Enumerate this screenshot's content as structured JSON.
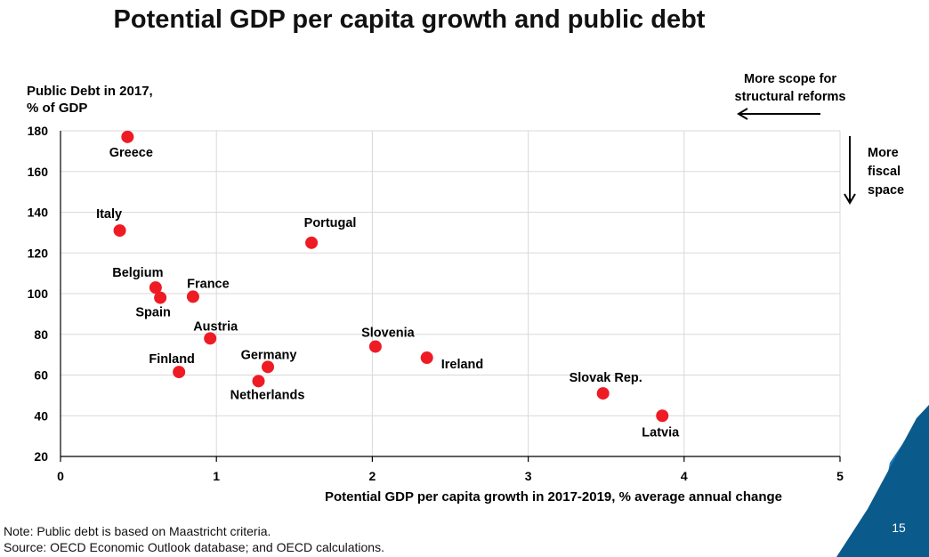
{
  "title": "Potential GDP per capita growth and public debt",
  "chart_data": {
    "type": "scatter",
    "title": "Potential GDP per capita growth and public debt",
    "xlabel": "Potential GDP per capita growth in 2017-2019, % average annual change",
    "ylabel_lines": [
      "Public Debt in 2017,",
      "% of GDP"
    ],
    "xlim": [
      0,
      5
    ],
    "ylim": [
      20,
      180
    ],
    "xticks": [
      0,
      1,
      2,
      3,
      4,
      5
    ],
    "yticks": [
      20,
      40,
      60,
      80,
      100,
      120,
      140,
      160,
      180
    ],
    "grid": true,
    "point_color": "#ee1b24",
    "points": [
      {
        "label": "Greece",
        "x": 0.43,
        "y": 177,
        "label_pos": "below"
      },
      {
        "label": "Italy",
        "x": 0.38,
        "y": 131,
        "label_pos": "above-left"
      },
      {
        "label": "Portugal",
        "x": 1.61,
        "y": 125,
        "label_pos": "above-right"
      },
      {
        "label": "Belgium",
        "x": 0.61,
        "y": 103,
        "label_pos": "above-left"
      },
      {
        "label": "Spain",
        "x": 0.64,
        "y": 98,
        "label_pos": "below-left"
      },
      {
        "label": "France",
        "x": 0.85,
        "y": 98.5,
        "label_pos": "above-right"
      },
      {
        "label": "Austria",
        "x": 0.96,
        "y": 78,
        "label_pos": "above-right"
      },
      {
        "label": "Slovenia",
        "x": 2.02,
        "y": 74,
        "label_pos": "above-right"
      },
      {
        "label": "Ireland",
        "x": 2.35,
        "y": 68.5,
        "label_pos": "right-below"
      },
      {
        "label": "Germany",
        "x": 1.33,
        "y": 64,
        "label_pos": "above-right"
      },
      {
        "label": "Finland",
        "x": 0.76,
        "y": 61.5,
        "label_pos": "above-left"
      },
      {
        "label": "Netherlands",
        "x": 1.27,
        "y": 57,
        "label_pos": "below-right"
      },
      {
        "label": "Slovak Rep.",
        "x": 3.48,
        "y": 51,
        "label_pos": "above-right"
      },
      {
        "label": "Latvia",
        "x": 3.86,
        "y": 40,
        "label_pos": "below-right"
      }
    ]
  },
  "annotations": {
    "reforms_line1": "More scope for",
    "reforms_line2": "structural reforms",
    "fiscal_line1": "More",
    "fiscal_line2": "fiscal",
    "fiscal_line3": "space"
  },
  "footer": {
    "note": "Note: Public debt is based on Maastricht criteria.",
    "source": "Source: OECD Economic Outlook database; and OECD calculations.",
    "page_number": "15"
  },
  "colors": {
    "accent_dark_blue": "#0a5a8c",
    "accent_blue": "#1f7bbd",
    "grid": "#d9d9d9"
  }
}
